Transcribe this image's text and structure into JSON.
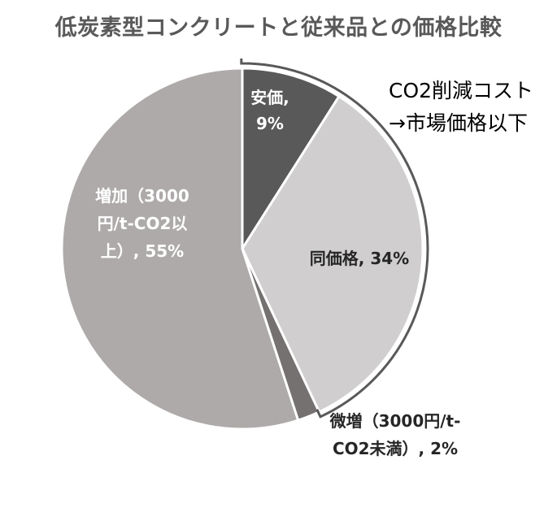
{
  "title": "低炭素型コンクリートと従来品との価格比較",
  "annotation": {
    "line1": "CO2削減コスト",
    "line2": "→市場価格以下"
  },
  "chart_data": {
    "type": "pie",
    "title": "低炭素型コンクリートと従来品との価格比較",
    "start_angle_deg": 0,
    "direction": "clockwise",
    "slices": [
      {
        "name": "安価",
        "value": 9,
        "pct_label": "9%",
        "color": "#595959",
        "label_color": "#ffffff",
        "label_lines": [
          "安価,",
          "9%"
        ]
      },
      {
        "name": "同価格",
        "value": 34,
        "pct_label": "34%",
        "color": "#d0cece",
        "label_color": "#262626",
        "label_lines": [
          "同価格, 34%"
        ]
      },
      {
        "name": "微増（3000円/t-CO2未満）",
        "value": 2,
        "pct_label": "2%",
        "color": "#767171",
        "label_color": "#262626",
        "label_lines": [
          "微増（3000円/t-",
          "CO2未満）, 2%"
        ]
      },
      {
        "name": "増加（3000円/t-CO2以上）",
        "value": 55,
        "pct_label": "55%",
        "color": "#aeaaaa",
        "label_color": "#ffffff",
        "label_lines": [
          "増加（3000",
          "円/t-CO2以",
          "上）, 55%"
        ]
      }
    ],
    "bracket": {
      "covers": [
        "安価",
        "同価格"
      ],
      "color": "#595959"
    }
  }
}
